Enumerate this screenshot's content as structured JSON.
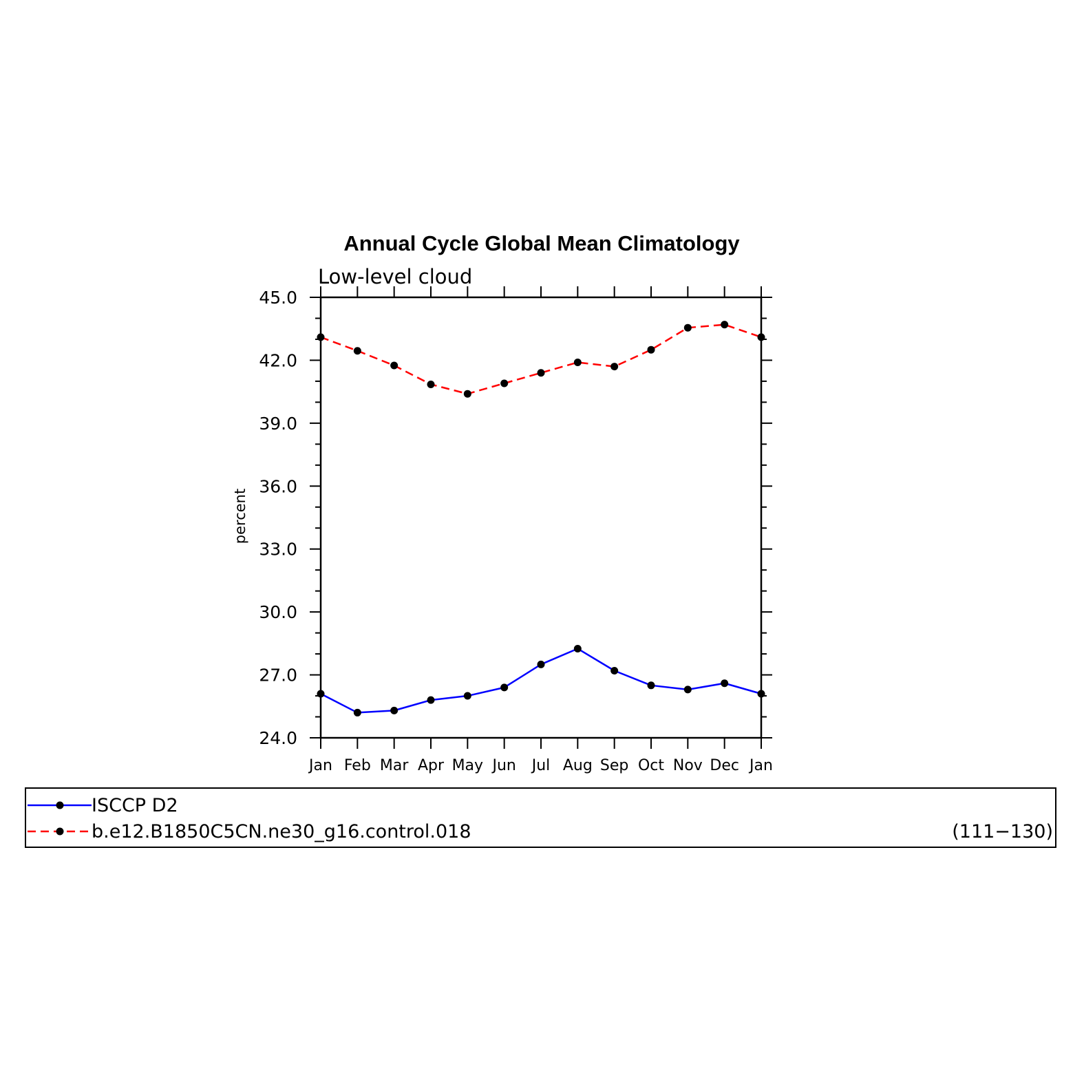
{
  "chart_data": {
    "type": "line",
    "title": "Annual Cycle Global Mean Climatology",
    "subtitle": "Low-level cloud",
    "ylabel": "percent",
    "xlabel": "",
    "categories": [
      "Jan",
      "Feb",
      "Mar",
      "Apr",
      "May",
      "Jun",
      "Jul",
      "Aug",
      "Sep",
      "Oct",
      "Nov",
      "Dec",
      "Jan"
    ],
    "ylim": [
      24.0,
      45.0
    ],
    "yticks": [
      "24.0",
      "27.0",
      "30.0",
      "33.0",
      "36.0",
      "39.0",
      "42.0",
      "45.0"
    ],
    "grid": false,
    "legend_placement": "bottom",
    "series": [
      {
        "name": "ISCCP D2",
        "color": "#0000ff",
        "dash": "solid",
        "values": [
          26.1,
          25.2,
          25.3,
          25.8,
          26.0,
          26.4,
          27.5,
          28.25,
          27.2,
          26.5,
          26.3,
          26.6,
          26.1
        ]
      },
      {
        "name": "b.e12.B1850C5CN.ne30_g16.control.018",
        "annotation": "(111−130)",
        "color": "#ff0000",
        "dash": "dashed",
        "values": [
          43.1,
          42.45,
          41.75,
          40.85,
          40.4,
          40.9,
          41.4,
          41.9,
          41.7,
          42.5,
          43.55,
          43.7,
          43.1
        ]
      }
    ]
  }
}
